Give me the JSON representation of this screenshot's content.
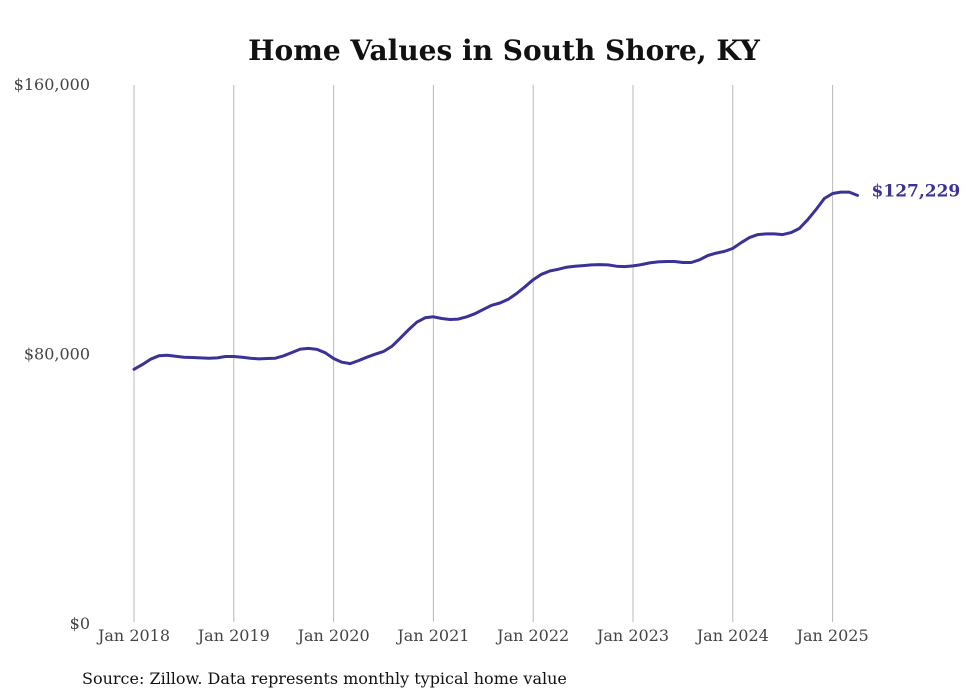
{
  "chart_data": {
    "type": "line",
    "title": "Home Values in South Shore, KY",
    "xlabel": "",
    "ylabel": "",
    "ylim": [
      0,
      160000
    ],
    "y_ticks": [
      {
        "value": 0,
        "label": "$0"
      },
      {
        "value": 80000,
        "label": "$80,000"
      },
      {
        "value": 160000,
        "label": "$160,000"
      }
    ],
    "x_ticks": [
      "Jan 2018",
      "Jan 2019",
      "Jan 2020",
      "Jan 2021",
      "Jan 2022",
      "Jan 2023",
      "Jan 2024",
      "Jan 2025"
    ],
    "grid": "vertical",
    "series": [
      {
        "color": "#3a3296",
        "end_label": "$127,229",
        "points": [
          [
            "2018-01",
            75600
          ],
          [
            "2018-02",
            77000
          ],
          [
            "2018-03",
            78600
          ],
          [
            "2018-04",
            79600
          ],
          [
            "2018-05",
            79800
          ],
          [
            "2018-06",
            79500
          ],
          [
            "2018-07",
            79200
          ],
          [
            "2018-08",
            79100
          ],
          [
            "2018-09",
            79000
          ],
          [
            "2018-10",
            78900
          ],
          [
            "2018-11",
            79000
          ],
          [
            "2018-12",
            79400
          ],
          [
            "2019-01",
            79400
          ],
          [
            "2019-02",
            79200
          ],
          [
            "2019-03",
            78900
          ],
          [
            "2019-04",
            78700
          ],
          [
            "2019-05",
            78800
          ],
          [
            "2019-06",
            78900
          ],
          [
            "2019-07",
            79600
          ],
          [
            "2019-08",
            80600
          ],
          [
            "2019-09",
            81600
          ],
          [
            "2019-10",
            81800
          ],
          [
            "2019-11",
            81500
          ],
          [
            "2019-12",
            80500
          ],
          [
            "2020-01",
            78800
          ],
          [
            "2020-02",
            77700
          ],
          [
            "2020-03",
            77300
          ],
          [
            "2020-04",
            78200
          ],
          [
            "2020-05",
            79200
          ],
          [
            "2020-06",
            80100
          ],
          [
            "2020-07",
            80900
          ],
          [
            "2020-08",
            82400
          ],
          [
            "2020-09",
            84800
          ],
          [
            "2020-10",
            87300
          ],
          [
            "2020-11",
            89600
          ],
          [
            "2020-12",
            90900
          ],
          [
            "2021-01",
            91200
          ],
          [
            "2021-02",
            90700
          ],
          [
            "2021-03",
            90400
          ],
          [
            "2021-04",
            90500
          ],
          [
            "2021-05",
            91200
          ],
          [
            "2021-06",
            92100
          ],
          [
            "2021-07",
            93400
          ],
          [
            "2021-08",
            94600
          ],
          [
            "2021-09",
            95300
          ],
          [
            "2021-10",
            96400
          ],
          [
            "2021-11",
            98100
          ],
          [
            "2021-12",
            100100
          ],
          [
            "2022-01",
            102200
          ],
          [
            "2022-02",
            103800
          ],
          [
            "2022-03",
            104800
          ],
          [
            "2022-04",
            105300
          ],
          [
            "2022-05",
            105900
          ],
          [
            "2022-06",
            106200
          ],
          [
            "2022-07",
            106400
          ],
          [
            "2022-08",
            106600
          ],
          [
            "2022-09",
            106700
          ],
          [
            "2022-10",
            106600
          ],
          [
            "2022-11",
            106200
          ],
          [
            "2022-12",
            106100
          ],
          [
            "2023-01",
            106300
          ],
          [
            "2023-02",
            106700
          ],
          [
            "2023-03",
            107200
          ],
          [
            "2023-04",
            107500
          ],
          [
            "2023-05",
            107600
          ],
          [
            "2023-06",
            107600
          ],
          [
            "2023-07",
            107300
          ],
          [
            "2023-08",
            107300
          ],
          [
            "2023-09",
            108100
          ],
          [
            "2023-10",
            109400
          ],
          [
            "2023-11",
            110100
          ],
          [
            "2023-12",
            110600
          ],
          [
            "2024-01",
            111500
          ],
          [
            "2024-02",
            113200
          ],
          [
            "2024-03",
            114700
          ],
          [
            "2024-04",
            115600
          ],
          [
            "2024-05",
            115800
          ],
          [
            "2024-06",
            115800
          ],
          [
            "2024-07",
            115600
          ],
          [
            "2024-08",
            116200
          ],
          [
            "2024-09",
            117400
          ],
          [
            "2024-10",
            120000
          ],
          [
            "2024-11",
            123000
          ],
          [
            "2024-12",
            126300
          ],
          [
            "2025-01",
            127800
          ],
          [
            "2025-02",
            128200
          ],
          [
            "2025-03",
            128200
          ],
          [
            "2025-04",
            127229
          ]
        ]
      }
    ],
    "source": "Source: Zillow. Data represents monthly typical home value"
  }
}
